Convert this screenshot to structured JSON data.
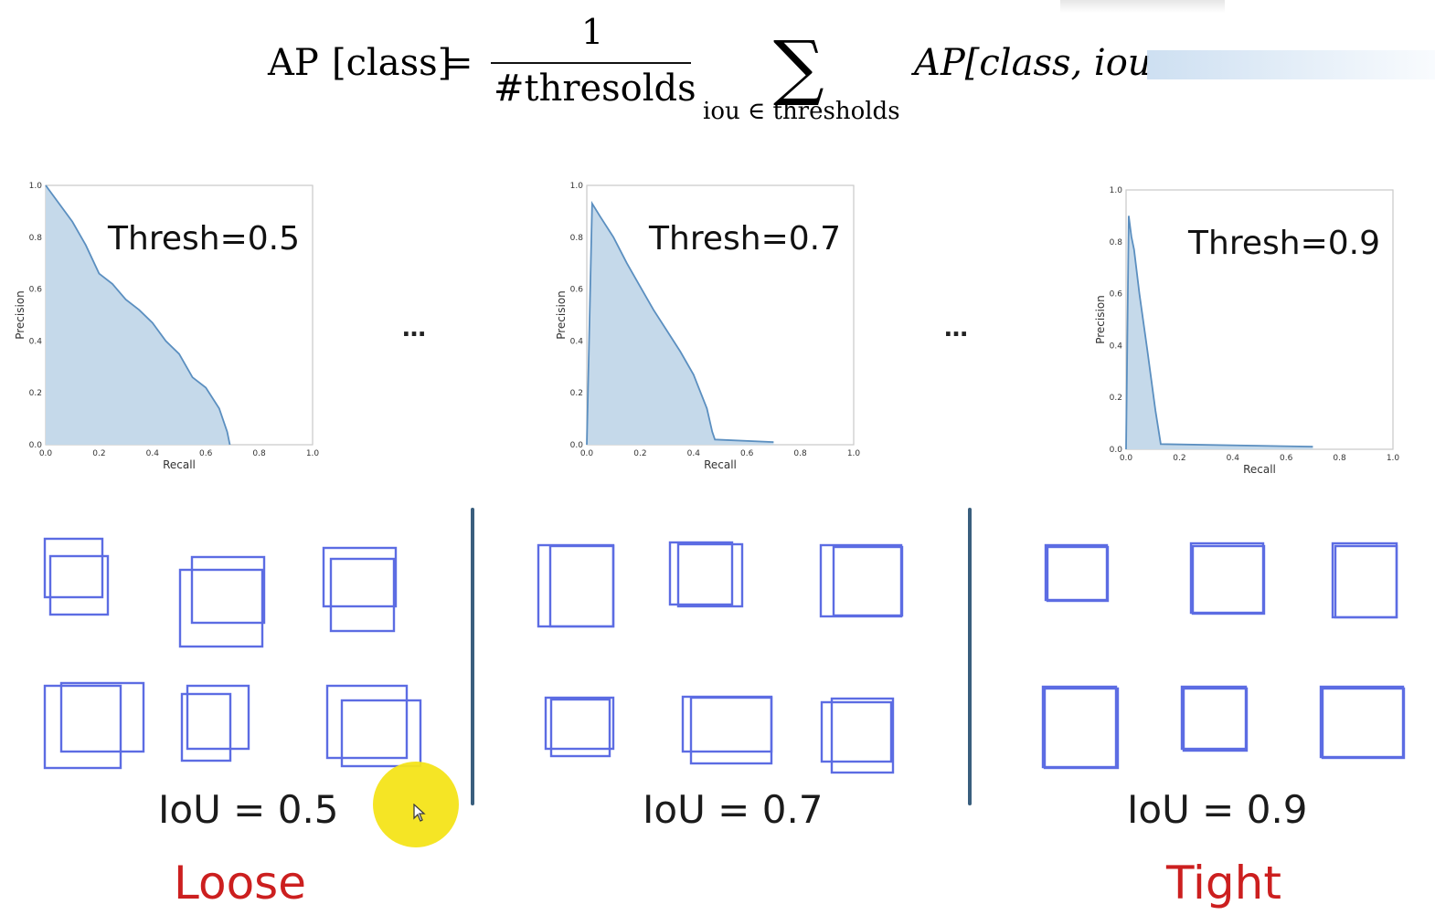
{
  "formula": {
    "lhs_ap": "AP",
    "lhs_class": "[class]",
    "equals": "=",
    "numerator": "1",
    "denominator": "#thresolds",
    "sum_symbol": "∑",
    "sum_index": "iou ∈ thresholds",
    "rhs": "AP[class, iou"
  },
  "chart_data": [
    {
      "type": "area",
      "title": "Thresh=0.5",
      "xlabel": "Recall",
      "ylabel": "Precision",
      "xlim": [
        0,
        1
      ],
      "ylim": [
        0,
        1
      ],
      "xticks": [
        "0.0",
        "0.2",
        "0.4",
        "0.6",
        "0.8",
        "1.0"
      ],
      "yticks": [
        "0.0",
        "0.2",
        "0.4",
        "0.6",
        "0.8",
        "1.0"
      ],
      "x": [
        0.0,
        0.05,
        0.1,
        0.15,
        0.2,
        0.25,
        0.3,
        0.35,
        0.4,
        0.45,
        0.5,
        0.55,
        0.6,
        0.65,
        0.68,
        0.69
      ],
      "y": [
        1.0,
        0.93,
        0.86,
        0.77,
        0.66,
        0.62,
        0.56,
        0.52,
        0.47,
        0.4,
        0.35,
        0.26,
        0.22,
        0.14,
        0.05,
        0.0
      ],
      "color": "#c5d9ea",
      "line_color": "#5b8fc0"
    },
    {
      "type": "area",
      "title": "Thresh=0.7",
      "xlabel": "Recall",
      "ylabel": "Precision",
      "xlim": [
        0,
        1
      ],
      "ylim": [
        0,
        1
      ],
      "xticks": [
        "0.0",
        "0.2",
        "0.4",
        "0.6",
        "0.8",
        "1.0"
      ],
      "yticks": [
        "0.0",
        "0.2",
        "0.4",
        "0.6",
        "0.8",
        "1.0"
      ],
      "x": [
        0.0,
        0.02,
        0.05,
        0.1,
        0.15,
        0.2,
        0.25,
        0.3,
        0.35,
        0.4,
        0.45,
        0.47,
        0.48,
        0.7
      ],
      "y": [
        0.0,
        0.93,
        0.88,
        0.8,
        0.7,
        0.61,
        0.52,
        0.44,
        0.36,
        0.27,
        0.14,
        0.05,
        0.02,
        0.01
      ],
      "color": "#c5d9ea",
      "line_color": "#5b8fc0"
    },
    {
      "type": "area",
      "title": "Thresh=0.9",
      "xlabel": "Recall",
      "ylabel": "Precision",
      "xlim": [
        0,
        1
      ],
      "ylim": [
        0,
        1
      ],
      "xticks": [
        "0.0",
        "0.2",
        "0.4",
        "0.6",
        "0.8",
        "1.0"
      ],
      "yticks": [
        "0.0",
        "0.2",
        "0.4",
        "0.6",
        "0.8",
        "1.0"
      ],
      "x": [
        0.0,
        0.01,
        0.02,
        0.03,
        0.05,
        0.08,
        0.11,
        0.13,
        0.7
      ],
      "y": [
        0.0,
        0.9,
        0.82,
        0.77,
        0.6,
        0.38,
        0.15,
        0.02,
        0.01
      ],
      "color": "#c5d9ea",
      "line_color": "#5b8fc0"
    }
  ],
  "ellipsis": "…",
  "groups": [
    {
      "iou_label": "IoU = 0.5",
      "tag": "Loose"
    },
    {
      "iou_label": "IoU = 0.7",
      "tag": ""
    },
    {
      "iou_label": "IoU = 0.9",
      "tag": "Tight"
    }
  ],
  "colors": {
    "box_stroke": "#4b5de0",
    "divider": "#3a5f7e",
    "tag": "#cc1f1f",
    "cursor_highlight": "#f5e41a"
  },
  "icons": {
    "cursor": "mouse-pointer-icon"
  }
}
